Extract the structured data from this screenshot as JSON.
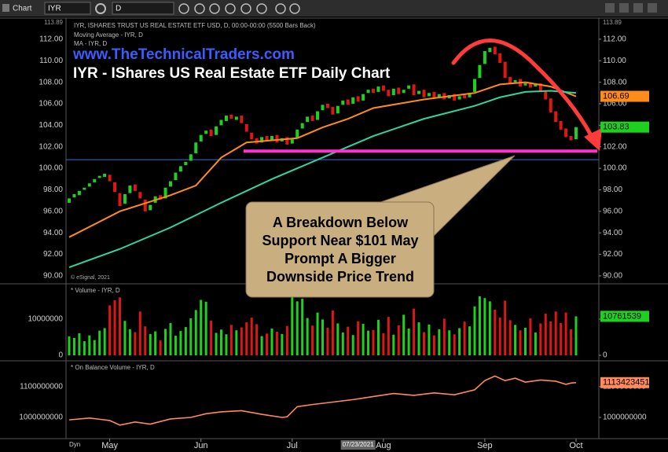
{
  "toolbar": {
    "title": "Chart",
    "symbol": "IYR",
    "interval": "D"
  },
  "dyn_label": "Dyn",
  "chart_data": [
    {
      "type": "candlestick",
      "title": "IYR, ISHARES TRUST US REAL ESTATE ETF USD, D, 00:00-00:00 (5500 Bars Back)",
      "up_color": "#1fd11f",
      "down_color": "#e01515",
      "open": [
        96.8,
        97.3,
        97.5,
        98.0,
        98.3,
        98.7,
        99.1,
        99.2,
        99.4,
        98.7,
        97.7,
        96.7,
        97.7,
        98.5,
        97.8,
        97.1,
        96.1,
        96.8,
        97.5,
        97.2,
        98.3,
        98.9,
        99.7,
        100.3,
        100.7,
        101.4,
        102.5,
        103.2,
        103.6,
        103.1,
        104.0,
        104.4,
        105.0,
        104.5,
        104.9,
        104.1,
        103.3,
        102.8,
        102.4,
        103.0,
        102.6,
        103.1,
        102.5,
        102.9,
        102.3,
        102.8,
        103.7,
        104.3,
        104.9,
        104.5,
        105.4,
        106.0,
        105.7,
        105.1,
        105.9,
        106.4,
        106.0,
        106.7,
        106.3,
        107.0,
        107.4,
        107.1,
        107.7,
        107.3,
        106.8,
        107.5,
        107.0,
        107.4,
        107.8,
        106.9,
        107.3,
        106.7,
        107.1,
        106.6,
        107.0,
        106.5,
        106.9,
        106.4,
        106.8,
        106.6,
        107.1,
        108.4,
        109.7,
        110.8,
        111.3,
        110.7,
        109.9,
        108.5,
        108.0,
        108.3,
        107.7,
        108.0,
        107.6,
        107.9,
        107.2,
        106.5,
        105.3,
        104.4,
        103.7,
        103.0,
        102.7
      ],
      "close": [
        97.2,
        97.6,
        97.9,
        98.2,
        98.6,
        99.0,
        99.3,
        99.5,
        98.8,
        97.8,
        96.5,
        97.6,
        98.4,
        97.9,
        97.2,
        96.0,
        96.6,
        97.4,
        97.1,
        98.2,
        98.8,
        99.6,
        100.2,
        100.6,
        101.3,
        102.4,
        103.1,
        103.5,
        103.0,
        103.9,
        104.5,
        104.9,
        104.6,
        104.8,
        104.2,
        103.4,
        102.7,
        102.3,
        102.9,
        102.6,
        103.0,
        102.4,
        102.8,
        102.2,
        102.7,
        103.6,
        104.2,
        104.8,
        104.4,
        105.3,
        105.9,
        105.6,
        105.0,
        105.8,
        106.3,
        105.9,
        106.6,
        106.2,
        106.9,
        107.3,
        107.0,
        107.6,
        107.2,
        106.7,
        107.4,
        106.9,
        107.3,
        107.7,
        106.8,
        107.2,
        106.6,
        107.0,
        106.5,
        106.9,
        106.4,
        106.8,
        106.3,
        106.7,
        106.5,
        107.0,
        108.3,
        109.6,
        110.9,
        111.2,
        110.6,
        109.8,
        108.4,
        107.9,
        108.2,
        107.6,
        107.9,
        107.5,
        107.8,
        107.1,
        106.4,
        105.2,
        104.3,
        103.6,
        102.9,
        102.6,
        103.83
      ],
      "series": [
        {
          "name": "Moving Average - IYR, D",
          "color": "#ff8c1a",
          "x": [
            0,
            10,
            20,
            25,
            30,
            35,
            40,
            45,
            50,
            55,
            60,
            70,
            80,
            85,
            90,
            95,
            100
          ],
          "values": [
            93.6,
            96.0,
            97.5,
            98.4,
            101.0,
            102.4,
            102.6,
            102.8,
            103.8,
            104.6,
            105.6,
            106.4,
            107.0,
            107.8,
            108.0,
            107.6,
            106.69
          ]
        },
        {
          "name": "MA - IYR, D",
          "color": "#2fd6a0",
          "x": [
            0,
            10,
            20,
            30,
            40,
            50,
            60,
            70,
            80,
            85,
            90,
            95,
            100
          ],
          "values": [
            90.8,
            92.5,
            94.5,
            96.8,
            99.0,
            101.0,
            103.0,
            104.6,
            105.8,
            106.6,
            107.1,
            107.2,
            107.0
          ]
        }
      ],
      "ylim": [
        89.34,
        113.89
      ],
      "yticks": [
        {
          "value": 90,
          "label": "90.00"
        },
        {
          "value": 92,
          "label": "92.00"
        },
        {
          "value": 94,
          "label": "94.00"
        },
        {
          "value": 96,
          "label": "96.00"
        },
        {
          "value": 98,
          "label": "98.00"
        },
        {
          "value": 100,
          "label": "100.00"
        },
        {
          "value": 102,
          "label": "102.00"
        },
        {
          "value": 104,
          "label": "104.00"
        },
        {
          "value": 106,
          "label": "106.00"
        },
        {
          "value": 108,
          "label": "108.00"
        },
        {
          "value": 110,
          "label": "110.00"
        },
        {
          "value": 112,
          "label": "112.00"
        }
      ],
      "xlim": [
        -0.62,
        104.5
      ],
      "xticks": [
        {
          "value": 8,
          "label": "May"
        },
        {
          "value": 26,
          "label": "Jun"
        },
        {
          "value": 44,
          "label": "Jul"
        },
        {
          "value": 62,
          "label": "Aug"
        },
        {
          "value": 82,
          "label": "Sep"
        },
        {
          "value": 100,
          "label": "Oct"
        }
      ],
      "cursor_date": {
        "value": 57,
        "label": "07/23/2021"
      },
      "support_line": {
        "value": 101.6,
        "color": "#ff33cc"
      },
      "reference_line": {
        "value": 100.8,
        "color": "#3a6fd8"
      },
      "website": "www.TheTechnicalTraders.com",
      "headline": "IYR - IShares US Real Estate ETF Daily Chart",
      "callout": [
        "A Breakdown Below",
        "Support Near $101 May",
        "Prompt A Bigger",
        "Downside Price Trend"
      ],
      "copyright": "© eSignal, 2021"
    },
    {
      "type": "bar",
      "title": "* Volume - IYR, D",
      "values": [
        5200000,
        4800000,
        6100000,
        3900000,
        5500000,
        4200000,
        6800000,
        7500000,
        13800000,
        15200000,
        16000000,
        9500000,
        7200000,
        6400000,
        12100000,
        8000000,
        5900000,
        6600000,
        4100000,
        7300000,
        8900000,
        5400000,
        6700000,
        7800000,
        10200000,
        12500000,
        15300000,
        14800000,
        9600000,
        6200000,
        7100000,
        5800000,
        8400000,
        6900000,
        7700000,
        9100000,
        10400000,
        8600000,
        5300000,
        6000000,
        7400000,
        6500000,
        5900000,
        8100000,
        16200000,
        14900000,
        15600000,
        10300000,
        8200000,
        11800000,
        9900000,
        7600000,
        12400000,
        8800000,
        6300000,
        7900000,
        5600000,
        9400000,
        8700000,
        6800000,
        7000000,
        9800000,
        6100000,
        10600000,
        5700000,
        8300000,
        11200000,
        7400000,
        12900000,
        9100000,
        6400000,
        8500000,
        5500000,
        7200000,
        10100000,
        6900000,
        5800000,
        7500000,
        9300000,
        8000000,
        13500000,
        16300000,
        15800000,
        14900000,
        12600000,
        10400000,
        15100000,
        9700000,
        8400000,
        6900000,
        7600000,
        10200000,
        6300000,
        8800000,
        11500000,
        9400000,
        12100000,
        8900000,
        11800000,
        7200000,
        10761539
      ],
      "ylim": [
        -1300000,
        19100000
      ],
      "yticks": [
        0,
        10000000
      ]
    },
    {
      "type": "line",
      "title": "* On Balance Volume - IYR, D",
      "series": [
        {
          "color": "#ff8a5c",
          "x": [
            0,
            4,
            8,
            10,
            13,
            16,
            20,
            24,
            27,
            30,
            34,
            38,
            42,
            43,
            45,
            48,
            52,
            56,
            60,
            64,
            68,
            72,
            76,
            80,
            82,
            84,
            86,
            88,
            90,
            93,
            96,
            98,
            99,
            100
          ],
          "values": [
            992000000,
            998000000,
            990000000,
            975000000,
            985000000,
            978000000,
            995000000,
            1000000000,
            1012000000,
            1018000000,
            1022000000,
            1010000000,
            1000000000,
            1002000000,
            1035000000,
            1042000000,
            1050000000,
            1058000000,
            1068000000,
            1078000000,
            1072000000,
            1080000000,
            1074000000,
            1090000000,
            1120000000,
            1135000000,
            1120000000,
            1128000000,
            1115000000,
            1122000000,
            1118000000,
            1108000000,
            1112000000,
            1113423451
          ]
        }
      ],
      "ylim": [
        935900000,
        1176900000
      ],
      "yticks": [
        1000000000,
        1100000000
      ]
    }
  ]
}
